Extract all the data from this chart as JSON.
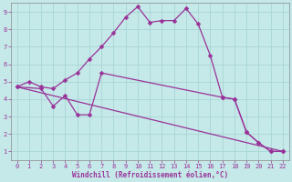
{
  "xlabel": "Windchill (Refroidissement éolien,°C)",
  "bg_color": "#c5e8e8",
  "grid_color": "#a8d5d5",
  "line_color": "#993399",
  "xlim": [
    -0.5,
    22.5
  ],
  "ylim": [
    0.5,
    9.5
  ],
  "xticks": [
    0,
    1,
    2,
    3,
    4,
    5,
    6,
    7,
    8,
    9,
    10,
    11,
    12,
    13,
    14,
    15,
    16,
    17,
    18,
    19,
    20,
    21,
    22
  ],
  "yticks": [
    1,
    2,
    3,
    4,
    5,
    6,
    7,
    8,
    9
  ],
  "line1_x": [
    0,
    1,
    2,
    3,
    4,
    5,
    6,
    7,
    8,
    9,
    10,
    11,
    12,
    13,
    14,
    15,
    16,
    17,
    18,
    19,
    20,
    21,
    22
  ],
  "line1_y": [
    4.7,
    5.0,
    4.7,
    4.6,
    5.1,
    5.5,
    6.3,
    7.0,
    7.8,
    8.7,
    9.3,
    8.4,
    8.5,
    8.5,
    9.2,
    8.3,
    6.5,
    4.1,
    4.0,
    2.1,
    1.5,
    1.0,
    1.0
  ],
  "line2_x": [
    0,
    2,
    3,
    4,
    5,
    6,
    7,
    17,
    18,
    19,
    20,
    21,
    22
  ],
  "line2_y": [
    4.7,
    4.6,
    3.6,
    4.2,
    3.1,
    3.1,
    5.5,
    4.1,
    4.0,
    2.1,
    1.5,
    1.0,
    1.0
  ],
  "line3_x": [
    0,
    22
  ],
  "line3_y": [
    4.7,
    1.0
  ],
  "marker": "D",
  "marker_size": 2.5,
  "line_width": 0.9,
  "tick_fontsize": 5.0,
  "label_fontsize": 5.5
}
